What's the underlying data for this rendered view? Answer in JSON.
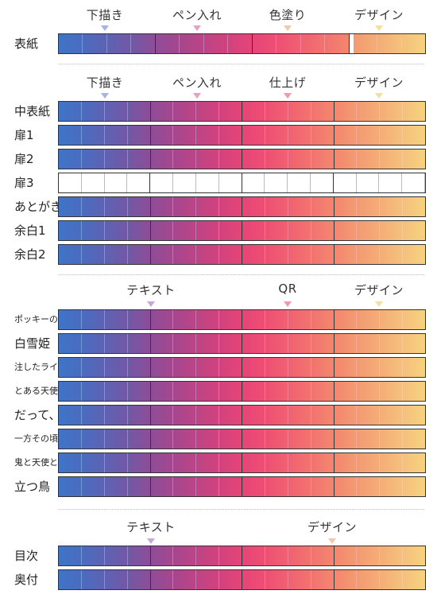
{
  "colors": [
    "#3f74c6",
    "#4a6cc0",
    "#5e62b3",
    "#7258a6",
    "#8e4d97",
    "#a5478e",
    "#bd4486",
    "#d2427e",
    "#e54578",
    "#ee4f73",
    "#f06171",
    "#f2736f",
    "#f3866f",
    "#f39a72",
    "#f4ad76",
    "#f5c07b",
    "#f6d27f",
    "#f7e384"
  ],
  "sections": [
    {
      "phases": [
        {
          "label": "下描き",
          "marker_color": "#a6b4e4"
        },
        {
          "label": "ペン入れ",
          "marker_color": "#e3a0c9"
        },
        {
          "label": "色塗り",
          "marker_color": "#f5c7a7"
        },
        {
          "label": "デザイン",
          "marker_color": "#f4df9e"
        }
      ],
      "rows": [
        {
          "label": "表紙",
          "small": false,
          "empty": false,
          "gaps": [
            12,
            17
          ]
        }
      ]
    },
    {
      "phases": [
        {
          "label": "下描き",
          "marker_color": "#a6b4e4"
        },
        {
          "label": "ペン入れ",
          "marker_color": "#e3a0c9"
        },
        {
          "label": "仕上げ",
          "marker_color": "#f19aa3"
        },
        {
          "label": "デザイン",
          "marker_color": "#f4df9e"
        }
      ],
      "rows": [
        {
          "label": "中表紙",
          "small": false,
          "empty": false,
          "gaps": []
        },
        {
          "label": "扉1",
          "small": false,
          "empty": false,
          "gaps": []
        },
        {
          "label": "扉2",
          "small": false,
          "empty": false,
          "gaps": []
        },
        {
          "label": "扉3",
          "small": false,
          "empty": true,
          "gaps": []
        },
        {
          "label": "あとがき",
          "small": false,
          "empty": false,
          "gaps": []
        },
        {
          "label": "余白1",
          "small": false,
          "empty": false,
          "gaps": []
        },
        {
          "label": "余白2",
          "small": false,
          "empty": false,
          "gaps": []
        }
      ]
    },
    {
      "phases": [
        {
          "label": "テキスト",
          "marker_color": "#c8a7d8"
        },
        {
          "label": "QR",
          "marker_color": "#f19aa3"
        },
        {
          "label": "デザイン",
          "marker_color": "#f4df9e"
        }
      ],
      "rows": [
        {
          "label": "ポッキーの日",
          "small": true,
          "empty": false,
          "gaps": []
        },
        {
          "label": "白雪姫",
          "small": false,
          "empty": false,
          "gaps": []
        },
        {
          "label": "注したライン",
          "small": true,
          "empty": false,
          "gaps": []
        },
        {
          "label": "とある天使の",
          "small": true,
          "empty": false,
          "gaps": []
        },
        {
          "label": "だって、",
          "small": false,
          "empty": false,
          "gaps": []
        },
        {
          "label": "一方その頃",
          "small": true,
          "empty": false,
          "gaps": []
        },
        {
          "label": "鬼と天使と",
          "small": true,
          "empty": false,
          "gaps": []
        },
        {
          "label": "立つ鳥",
          "small": false,
          "empty": false,
          "gaps": []
        }
      ]
    },
    {
      "phases": [
        {
          "label": "テキスト",
          "marker_color": "#c8a7d8"
        },
        {
          "label": "デザイン",
          "marker_color": "#f5c7a7"
        }
      ],
      "rows": [
        {
          "label": "目次",
          "small": false,
          "empty": false,
          "gaps": []
        },
        {
          "label": "奥付",
          "small": false,
          "empty": false,
          "gaps": []
        }
      ]
    }
  ]
}
